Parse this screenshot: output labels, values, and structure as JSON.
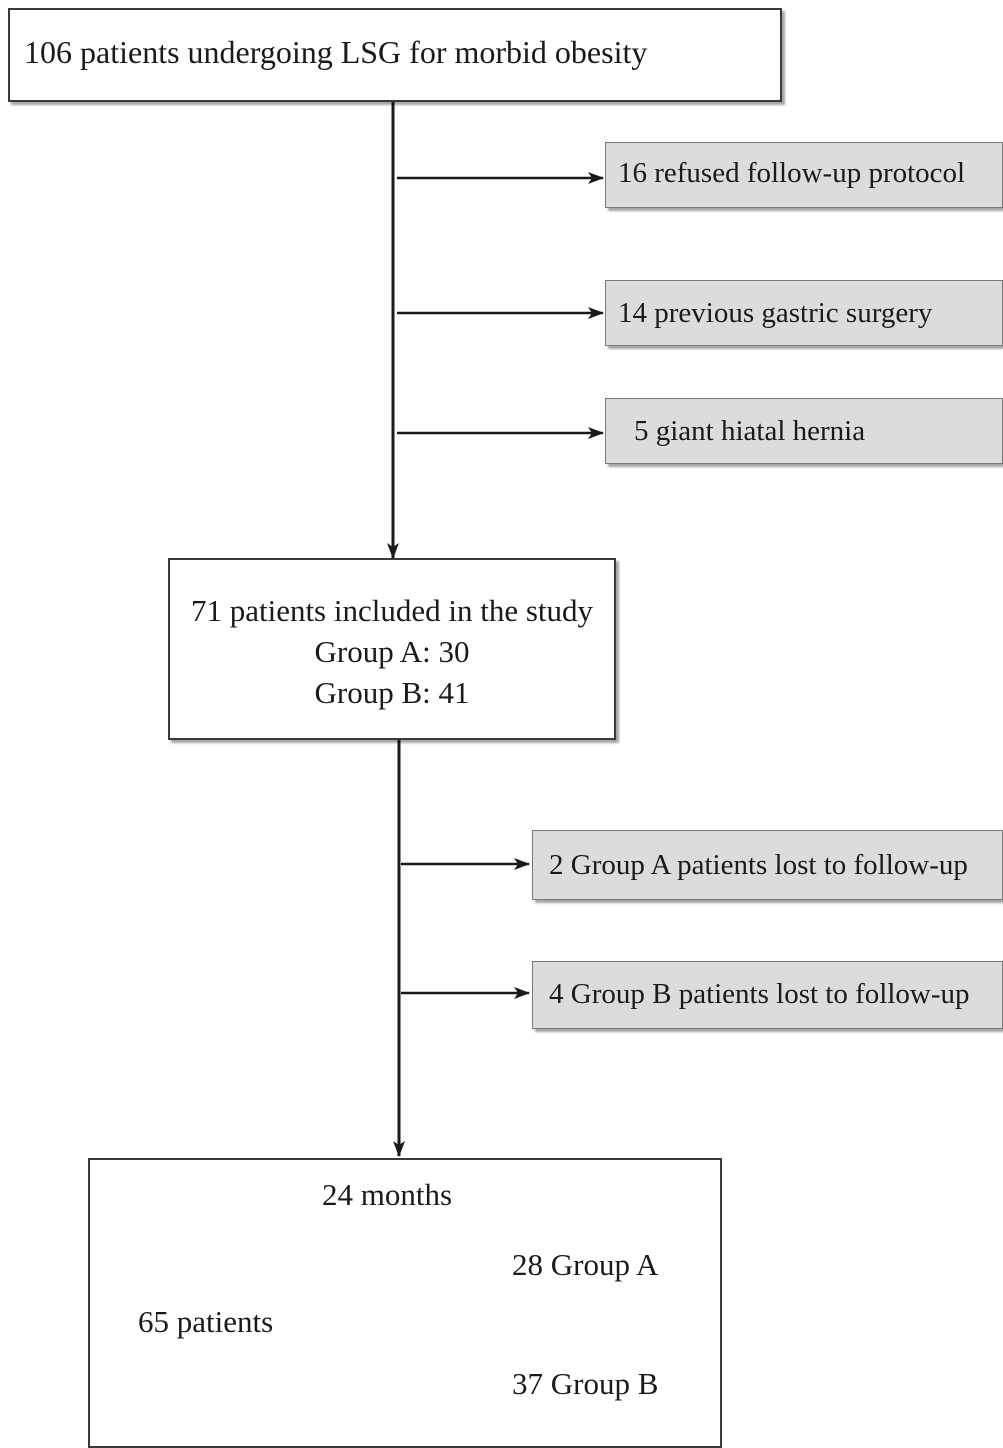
{
  "top_box": {
    "text": "106 patients undergoing LSG for morbid obesity"
  },
  "exclusions": [
    {
      "text": "16 refused follow-up protocol"
    },
    {
      "text": "14 previous gastric surgery"
    },
    {
      "text": "5 giant hiatal hernia"
    }
  ],
  "included_box": {
    "line1": "71 patients included in the study",
    "line2": "Group A: 30",
    "line3": "Group B: 41"
  },
  "lost_followup": [
    {
      "text": "2 Group A patients lost to follow-up"
    },
    {
      "text": "4 Group B patients lost to follow-up"
    }
  ],
  "final_box": {
    "period": "24 months",
    "total": "65 patients",
    "group_a": "28 Group A",
    "group_b": "37 Group B"
  }
}
